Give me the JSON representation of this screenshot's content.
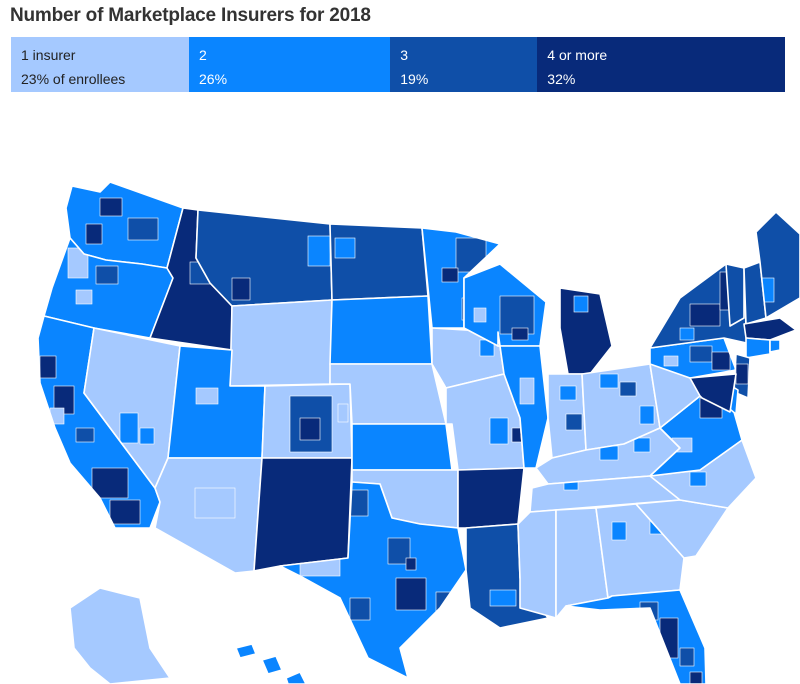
{
  "title": "Number of Marketplace Insurers for 2018",
  "legend": [
    {
      "label": "1 insurer",
      "value": "23% of enrollees",
      "share": 23,
      "color": "#a5c9ff",
      "text_color": "#222222"
    },
    {
      "label": "2",
      "value": "26%",
      "share": 26,
      "color": "#0a85ff",
      "text_color": "#ffffff"
    },
    {
      "label": "3",
      "value": "19%",
      "share": 19,
      "color": "#0f4fa8",
      "text_color": "#ffffff"
    },
    {
      "label": "4 or more",
      "value": "32%",
      "share": 32,
      "color": "#082a7a",
      "text_color": "#ffffff"
    }
  ],
  "colors": {
    "c1": "#a5c9ff",
    "c2": "#0a85ff",
    "c3": "#0f4fa8",
    "c4": "#082a7a",
    "border": "#ffffff"
  },
  "map": {
    "type": "choropleth",
    "region": "united-states-counties",
    "states": [
      {
        "name": "Washington",
        "category": 2
      },
      {
        "name": "Oregon",
        "category": 2
      },
      {
        "name": "California",
        "category": 2
      },
      {
        "name": "Nevada",
        "category": 1
      },
      {
        "name": "Idaho",
        "category": 4
      },
      {
        "name": "Montana",
        "category": 3
      },
      {
        "name": "Wyoming",
        "category": 1
      },
      {
        "name": "Utah",
        "category": 2
      },
      {
        "name": "Arizona",
        "category": 1
      },
      {
        "name": "Colorado",
        "category": 1
      },
      {
        "name": "New Mexico",
        "category": 4
      },
      {
        "name": "North Dakota",
        "category": 3
      },
      {
        "name": "South Dakota",
        "category": 2
      },
      {
        "name": "Nebraska",
        "category": 1
      },
      {
        "name": "Kansas",
        "category": 2
      },
      {
        "name": "Oklahoma",
        "category": 1
      },
      {
        "name": "Texas",
        "category": 2
      },
      {
        "name": "Minnesota",
        "category": 2
      },
      {
        "name": "Iowa",
        "category": 1
      },
      {
        "name": "Missouri",
        "category": 1
      },
      {
        "name": "Arkansas",
        "category": 4
      },
      {
        "name": "Louisiana",
        "category": 3
      },
      {
        "name": "Wisconsin",
        "category": 2
      },
      {
        "name": "Illinois",
        "category": 2
      },
      {
        "name": "Michigan",
        "category": 4
      },
      {
        "name": "Indiana",
        "category": 1
      },
      {
        "name": "Ohio",
        "category": 1
      },
      {
        "name": "Kentucky",
        "category": 1
      },
      {
        "name": "Tennessee",
        "category": 1
      },
      {
        "name": "Mississippi",
        "category": 1
      },
      {
        "name": "Alabama",
        "category": 1
      },
      {
        "name": "Georgia",
        "category": 1
      },
      {
        "name": "Florida",
        "category": 2
      },
      {
        "name": "South Carolina",
        "category": 1
      },
      {
        "name": "North Carolina",
        "category": 1
      },
      {
        "name": "Virginia",
        "category": 2
      },
      {
        "name": "West Virginia",
        "category": 1
      },
      {
        "name": "Pennsylvania",
        "category": 2
      },
      {
        "name": "New York",
        "category": 3
      },
      {
        "name": "Vermont",
        "category": 3
      },
      {
        "name": "New Hampshire",
        "category": 3
      },
      {
        "name": "Maine",
        "category": 3
      },
      {
        "name": "Massachusetts",
        "category": 4
      },
      {
        "name": "Connecticut",
        "category": 2
      },
      {
        "name": "Rhode Island",
        "category": 2
      },
      {
        "name": "New Jersey",
        "category": 3
      },
      {
        "name": "Delaware",
        "category": 2
      },
      {
        "name": "Maryland",
        "category": 4
      },
      {
        "name": "Alaska",
        "category": 1
      },
      {
        "name": "Hawaii",
        "category": 2
      }
    ]
  }
}
